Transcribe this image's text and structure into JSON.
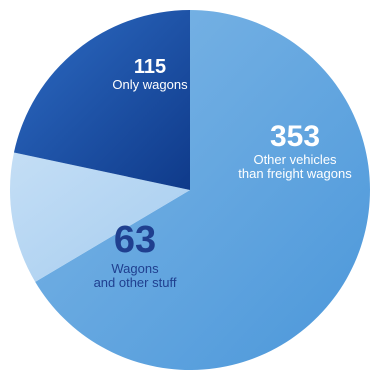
{
  "chart_data": {
    "type": "pie",
    "slices": [
      {
        "value": 353,
        "value_label": "353",
        "label_lines": [
          "Other vehicles",
          "than freight wagons"
        ],
        "color": "#5ba4df"
      },
      {
        "value": 63,
        "value_label": "63",
        "label_lines": [
          "Wagons",
          "and other stuff"
        ],
        "color": "#bcd9f4"
      },
      {
        "value": 115,
        "value_label": "115",
        "label_lines": [
          "Only wagons"
        ],
        "color": "#1d4fa3"
      }
    ]
  },
  "colors": {
    "gradient_dark_1": "#2f7fd0",
    "gradient_dark_2": "#0f3a85",
    "gradient_light_1": "#d4e8fa",
    "gradient_light_2": "#a8ccef",
    "text_dark": "#1f3f8f"
  }
}
